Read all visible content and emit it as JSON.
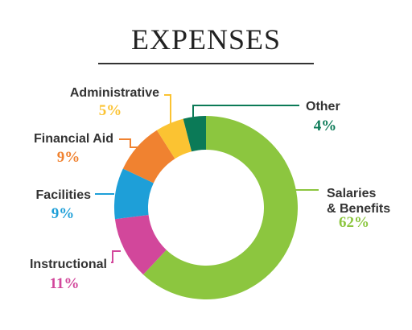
{
  "chart_data": {
    "type": "pie",
    "title": "EXPENSES",
    "style": "donut",
    "categories": [
      "Salaries & Benefits",
      "Instructional",
      "Facilities",
      "Financial Aid",
      "Administrative",
      "Other"
    ],
    "label_lines": [
      [
        "Salaries",
        "& Benefits"
      ],
      [
        "Instructional"
      ],
      [
        "Facilities"
      ],
      [
        "Financial Aid"
      ],
      [
        "Administrative"
      ],
      [
        "Other"
      ]
    ],
    "values": [
      62,
      11,
      9,
      9,
      5,
      4
    ],
    "value_labels": [
      "62%",
      "11%",
      "9%",
      "9%",
      "5%",
      "4%"
    ],
    "colors": [
      "#8cc63f",
      "#d2479b",
      "#1e9fd8",
      "#f08230",
      "#fbc332",
      "#0b7a57"
    ]
  }
}
